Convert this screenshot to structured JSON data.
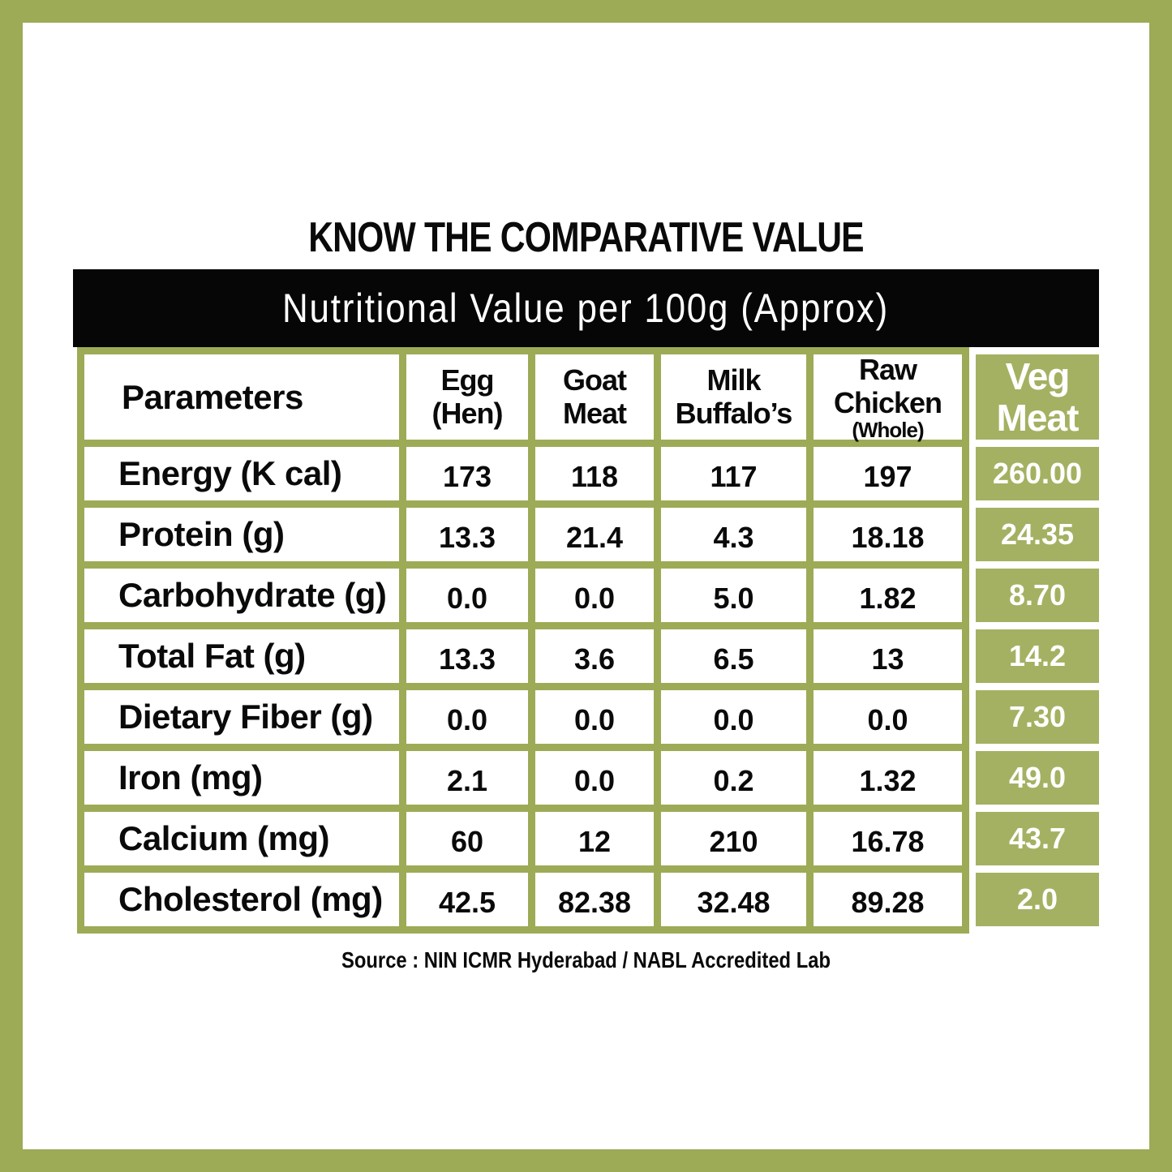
{
  "page": {
    "title": "KNOW THE COMPARATIVE VALUE",
    "banner": "Nutritional Value per 100g (Approx)",
    "source": "Source : NIN ICMR Hyderabad / NABL Accredited Lab"
  },
  "colors": {
    "frame_and_grid_green": "#9dab56",
    "veg_column_green": "#a4b162",
    "banner_black": "#060606",
    "text_black": "#0a0a0a",
    "cell_white": "#ffffff"
  },
  "table": {
    "param_header": "Parameters",
    "columns": [
      {
        "line1": "Egg",
        "line2": "(Hen)"
      },
      {
        "line1": "Goat",
        "line2": "Meat"
      },
      {
        "line1": "Milk",
        "line2": "Buffalo’s"
      },
      {
        "line1": "Raw",
        "line2": "Chicken",
        "line3": "(Whole)"
      }
    ],
    "veg_header": {
      "line1": "Veg",
      "line2": "Meat"
    },
    "rows": [
      {
        "label": "Energy (K cal)",
        "c1": "173",
        "c2": "118",
        "c3": "117",
        "c4": "197",
        "veg": "260.00"
      },
      {
        "label": "Protein (g)",
        "c1": "13.3",
        "c2": "21.4",
        "c3": "4.3",
        "c4": "18.18",
        "veg": "24.35"
      },
      {
        "label": "Carbohydrate (g)",
        "c1": "0.0",
        "c2": "0.0",
        "c3": "5.0",
        "c4": "1.82",
        "veg": "8.70"
      },
      {
        "label": "Total Fat (g)",
        "c1": "13.3",
        "c2": "3.6",
        "c3": "6.5",
        "c4": "13",
        "veg": "14.2"
      },
      {
        "label": "Dietary Fiber (g)",
        "c1": "0.0",
        "c2": "0.0",
        "c3": "0.0",
        "c4": "0.0",
        "veg": "7.30"
      },
      {
        "label": "Iron (mg)",
        "c1": "2.1",
        "c2": "0.0",
        "c3": "0.2",
        "c4": "1.32",
        "veg": "49.0"
      },
      {
        "label": "Calcium (mg)",
        "c1": "60",
        "c2": "12",
        "c3": "210",
        "c4": "16.78",
        "veg": "43.7"
      },
      {
        "label": "Cholesterol (mg)",
        "c1": "42.5",
        "c2": "82.38",
        "c3": "32.48",
        "c4": "89.28",
        "veg": "2.0"
      }
    ]
  },
  "chart_data": {
    "type": "table",
    "title": "Nutritional Value per 100g (Approx)",
    "subtitle": "KNOW THE COMPARATIVE VALUE",
    "columns": [
      "Parameters",
      "Egg (Hen)",
      "Goat Meat",
      "Milk Buffalo’s",
      "Raw Chicken (Whole)",
      "Veg Meat"
    ],
    "rows": [
      [
        "Energy (K cal)",
        "173",
        "118",
        "117",
        "197",
        "260.00"
      ],
      [
        "Protein (g)",
        "13.3",
        "21.4",
        "4.3",
        "18.18",
        "24.35"
      ],
      [
        "Carbohydrate (g)",
        "0.0",
        "0.0",
        "5.0",
        "1.82",
        "8.70"
      ],
      [
        "Total Fat (g)",
        "13.3",
        "3.6",
        "6.5",
        "13",
        "14.2"
      ],
      [
        "Dietary Fiber (g)",
        "0.0",
        "0.0",
        "0.0",
        "0.0",
        "7.30"
      ],
      [
        "Iron (mg)",
        "2.1",
        "0.0",
        "0.2",
        "1.32",
        "49.0"
      ],
      [
        "Calcium (mg)",
        "60",
        "12",
        "210",
        "16.78",
        "43.7"
      ],
      [
        "Cholesterol (mg)",
        "42.5",
        "82.38",
        "32.48",
        "89.28",
        "2.0"
      ]
    ],
    "source": "Source : NIN ICMR Hyderabad / NABL Accredited Lab",
    "highlight_column": "Veg Meat"
  }
}
